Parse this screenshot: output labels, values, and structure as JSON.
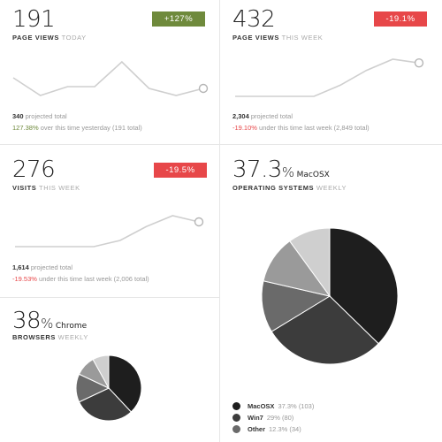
{
  "cards": {
    "pv_today": {
      "value": "191",
      "label": "PAGE VIEWS",
      "label_muted": "TODAY",
      "badge": "+127%",
      "projected_value": "340",
      "projected_text": "projected total",
      "compare_pct": "127.38%",
      "compare_text": "over this time yesterday (191 total)",
      "sparkline": [
        0.45,
        0.95,
        0.7,
        0.7,
        0.0,
        0.75,
        0.95,
        0.75
      ]
    },
    "pv_week": {
      "value": "432",
      "label": "PAGE VIEWS",
      "label_muted": "THIS WEEK",
      "badge": "-19.1%",
      "projected_value": "2,304",
      "projected_text": "projected total",
      "compare_pct": "-19.10%",
      "compare_text": "under this time last week (2,849 total)",
      "sparkline": [
        1.0,
        1.0,
        1.0,
        1.0,
        0.7,
        0.3,
        0.0,
        0.1
      ]
    },
    "visits_week": {
      "value": "276",
      "label": "VISITS",
      "label_muted": "THIS WEEK",
      "badge": "-19.5%",
      "projected_value": "1,614",
      "projected_text": "projected total",
      "compare_pct": "-19.53%",
      "compare_text": "under this time last week (2,006 total)",
      "sparkline": [
        1.0,
        1.0,
        1.0,
        1.0,
        0.8,
        0.35,
        0.0,
        0.2
      ]
    },
    "browsers": {
      "value": "38",
      "unit": "%",
      "suffix": "Chrome",
      "label": "BROWSERS",
      "label_muted": "WEEKLY",
      "pie": [
        38,
        30,
        14,
        10,
        8
      ]
    },
    "os": {
      "value": "37.3",
      "unit": "%",
      "suffix": "MacOSX",
      "label": "OPERATING SYSTEMS",
      "label_muted": "WEEKLY",
      "pie": [
        37.3,
        29,
        12.3,
        11.4,
        10
      ],
      "legend": [
        {
          "name": "MacOSX",
          "pct": "37.3%",
          "count": "(103)",
          "color": "#1e1e1e"
        },
        {
          "name": "Win7",
          "pct": "29%",
          "count": "(80)",
          "color": "#3c3c3c"
        },
        {
          "name": "Other",
          "pct": "12.3%",
          "count": "(34)",
          "color": "#6a6a6a"
        }
      ]
    }
  },
  "colors": {
    "green": "#6f8a3c",
    "red": "#e74749",
    "pie_shades": [
      "#1e1e1e",
      "#3c3c3c",
      "#6a6a6a",
      "#9a9a9a",
      "#cfcfcf"
    ]
  }
}
